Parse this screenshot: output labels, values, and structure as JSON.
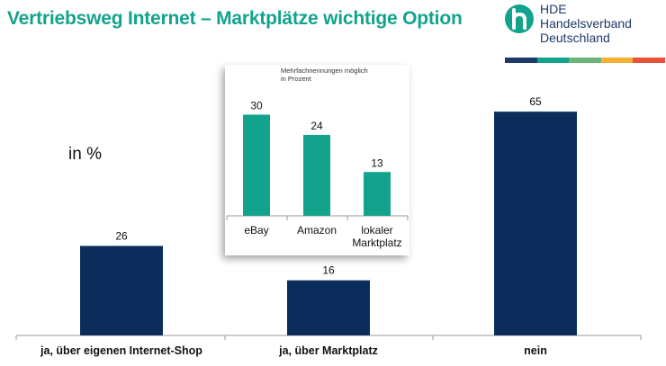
{
  "header": {
    "title": "Vertriebsweg Internet – Marktplätze wichtige Option",
    "logo": {
      "icon": "hde-h-icon",
      "lines": [
        "HDE",
        "Handelsverband",
        "Deutschland"
      ],
      "stripe_colors": [
        "#1d3a6b",
        "#13a38d",
        "#6cb37a",
        "#f2b134",
        "#e8523a"
      ]
    }
  },
  "unit_label": "in %",
  "chart_data": [
    {
      "type": "bar",
      "categories": [
        "ja, über eigenen Internet-Shop",
        "ja, über Marktplatz",
        "nein"
      ],
      "values": [
        26,
        16,
        65
      ],
      "ylim": [
        0,
        70
      ],
      "grid": false,
      "color": "#0c2d5c"
    },
    {
      "type": "bar",
      "note": [
        "Mehrfachnennungen möglich",
        "in Prozent"
      ],
      "categories": [
        [
          "eBay"
        ],
        [
          "Amazon"
        ],
        [
          "lokaler",
          "Marktplatz"
        ]
      ],
      "values": [
        30,
        24,
        13
      ],
      "ylim": [
        0,
        32
      ],
      "grid": false,
      "color": "#13a38d"
    }
  ]
}
